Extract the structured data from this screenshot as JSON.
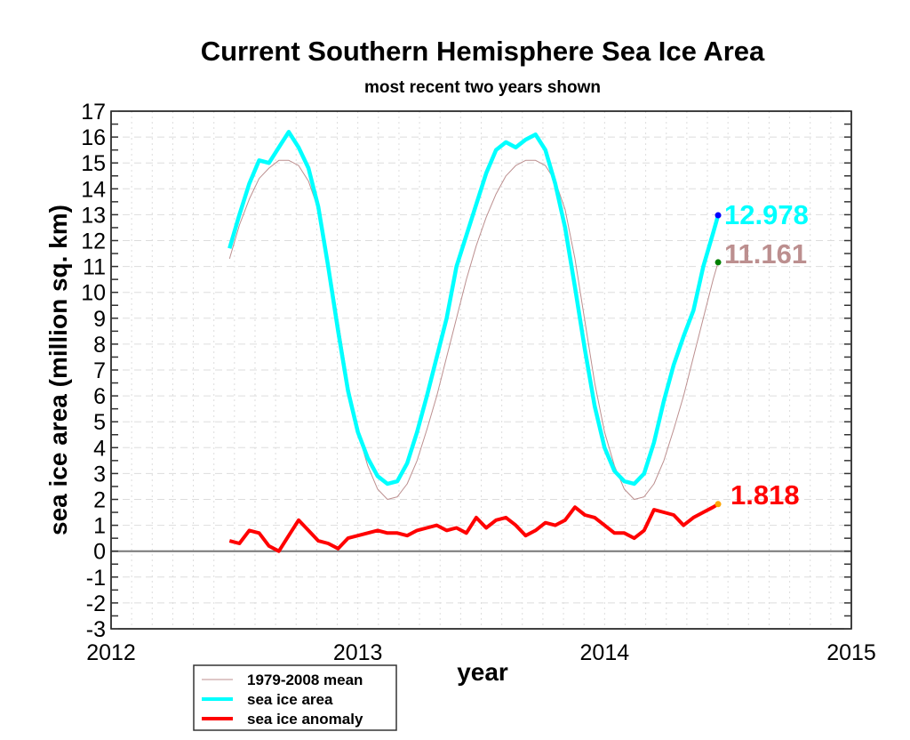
{
  "chart_data": {
    "type": "line",
    "title": "Current Southern Hemisphere Sea Ice Area",
    "subtitle": "most recent two years shown",
    "xlabel": "year",
    "ylabel": "sea ice area (million sq. km)",
    "xlim": [
      2012,
      2015
    ],
    "ylim": [
      -3,
      17
    ],
    "x_ticks": [
      "2012",
      "2013",
      "2014",
      "2015"
    ],
    "y_ticks": [
      "-3",
      "-2",
      "-1",
      "0",
      "1",
      "2",
      "3",
      "4",
      "5",
      "6",
      "7",
      "8",
      "9",
      "10",
      "11",
      "12",
      "13",
      "14",
      "15",
      "16",
      "17"
    ],
    "grid": true,
    "legend_position": "bottom-left",
    "x": [
      2012.48,
      2012.52,
      2012.56,
      2012.6,
      2012.64,
      2012.68,
      2012.72,
      2012.76,
      2012.8,
      2012.84,
      2012.88,
      2012.92,
      2012.96,
      2013.0,
      2013.04,
      2013.08,
      2013.12,
      2013.16,
      2013.2,
      2013.24,
      2013.28,
      2013.32,
      2013.36,
      2013.4,
      2013.44,
      2013.48,
      2013.52,
      2013.56,
      2013.6,
      2013.64,
      2013.68,
      2013.72,
      2013.76,
      2013.8,
      2013.84,
      2013.88,
      2013.92,
      2013.96,
      2014.0,
      2014.04,
      2014.08,
      2014.12,
      2014.16,
      2014.2,
      2014.24,
      2014.28,
      2014.32,
      2014.36,
      2014.4,
      2014.44,
      2014.46
    ],
    "series": [
      {
        "name": "1979-2008 mean",
        "color": "#bc8f8f",
        "values": [
          11.3,
          12.6,
          13.6,
          14.4,
          14.8,
          15.1,
          15.1,
          14.9,
          14.3,
          13.2,
          11.3,
          8.9,
          6.5,
          4.6,
          3.3,
          2.4,
          2.0,
          2.1,
          2.6,
          3.5,
          4.7,
          6.0,
          7.5,
          9.0,
          10.5,
          11.8,
          12.9,
          13.8,
          14.5,
          14.9,
          15.1,
          15.1,
          14.9,
          14.3,
          13.2,
          11.3,
          8.9,
          6.5,
          4.6,
          3.3,
          2.4,
          2.0,
          2.1,
          2.6,
          3.5,
          4.7,
          6.0,
          7.5,
          9.0,
          10.5,
          11.161
        ],
        "end_label": "11.161",
        "end_marker_color": "#008000"
      },
      {
        "name": "sea ice area",
        "color": "#00ffff",
        "values": [
          11.7,
          13.0,
          14.2,
          15.1,
          15.0,
          15.6,
          16.2,
          15.6,
          14.8,
          13.3,
          11.0,
          8.5,
          6.2,
          4.6,
          3.6,
          2.9,
          2.6,
          2.7,
          3.4,
          4.6,
          6.0,
          7.5,
          9.0,
          11.0,
          12.2,
          13.4,
          14.6,
          15.5,
          15.8,
          15.6,
          15.9,
          16.1,
          15.5,
          14.2,
          12.5,
          10.2,
          7.8,
          5.6,
          4.0,
          3.1,
          2.7,
          2.6,
          3.0,
          4.2,
          5.8,
          7.2,
          8.3,
          9.3,
          11.0,
          12.3,
          12.978
        ],
        "end_label": "12.978",
        "end_marker_color": "#0000ff"
      },
      {
        "name": "sea ice anomaly",
        "color": "#ff0000",
        "values": [
          0.4,
          0.3,
          0.8,
          0.7,
          0.2,
          0.0,
          0.6,
          1.2,
          0.8,
          0.4,
          0.3,
          0.1,
          0.5,
          0.6,
          0.7,
          0.8,
          0.7,
          0.7,
          0.6,
          0.8,
          0.9,
          1.0,
          0.8,
          0.9,
          0.7,
          1.3,
          0.9,
          1.2,
          1.3,
          1.0,
          0.6,
          0.8,
          1.1,
          1.0,
          1.2,
          1.7,
          1.4,
          1.3,
          1.0,
          0.7,
          0.7,
          0.5,
          0.8,
          1.6,
          1.5,
          1.4,
          1.0,
          1.3,
          1.5,
          1.7,
          1.818
        ],
        "end_label": "1.818",
        "end_marker_color": "#ffa500"
      }
    ]
  }
}
